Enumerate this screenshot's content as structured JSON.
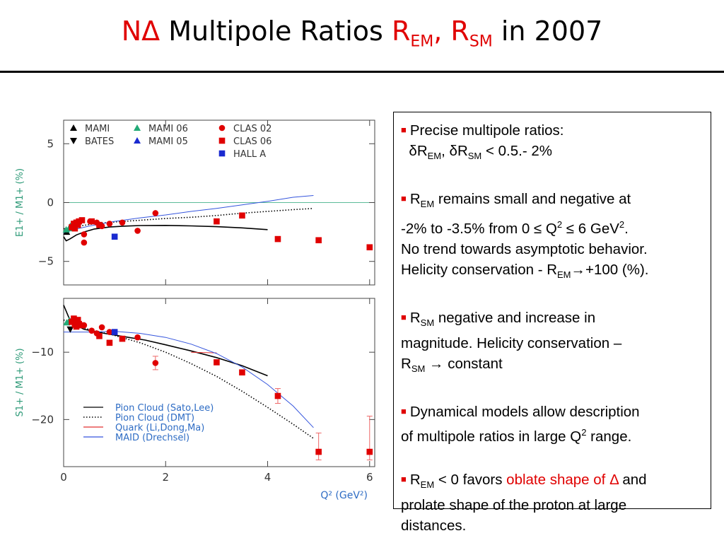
{
  "slide": {
    "title": {
      "part1": "NΔ",
      "part2": "Multipole Ratios",
      "rem_r": "R",
      "rem_sub": "EM",
      "comma": ",",
      "rsm_r": "R",
      "rsm_sub": "SM",
      "tail": "in 2007"
    },
    "notes": {
      "b1_line1": "Precise multipole ratios:",
      "b1_d1": "δR",
      "b1_s1": "EM",
      "b1_sep": ",",
      "b1_d2": "δR",
      "b1_s2": "SM",
      "b1_end": "< 0.5.- 2%",
      "b2_r": "R",
      "b2_sub": "EM",
      "b2_t1": "remains small and negative at",
      "b2_t2a": "-2% to -3.5% from 0 ≤ Q",
      "b2_sup1": "2",
      "b2_t2b": "≤ 6 GeV",
      "b2_sup2": "2",
      "b2_t2c": ".",
      "b2_t3": "No trend towards asymptotic behavior.",
      "b2_t4a": "Helicity conservation - R",
      "b2_sub2": "EM",
      "b2_t4b": "→+100 (%).",
      "b3_r": "R",
      "b3_sub": "SM",
      "b3_t1": "negative and increase in",
      "b3_t2": "magnitude. Helicity conservation –",
      "b3_r2": "R",
      "b3_sub2": "SM",
      "b3_t3": "→ constant",
      "b4_t1": "Dynamical models allow description",
      "b4_t2a": "of multipole ratios in large Q",
      "b4_sup": "2",
      "b4_t2b": "range.",
      "b5_r": "R",
      "b5_sub": "EM",
      "b5_t1": "< 0 favors",
      "b5_red": "oblate shape of Δ",
      "b5_t2": "and",
      "b5_t3": "prolate shape of the proton at large",
      "b5_t4": "distances."
    }
  },
  "chart_data": [
    {
      "type": "scatter",
      "panel": "top",
      "ylabel": "E1+ / M1+ (%)",
      "x_range": [
        0,
        6.1
      ],
      "ylim": [
        -7,
        7
      ],
      "y_ticks": [
        5,
        0,
        -5
      ],
      "y_tick_labels": [
        "5",
        "0",
        "−5"
      ],
      "zero_line": true,
      "legend": [
        {
          "label": "MAMI",
          "marker": "triangle-up",
          "color": "#000000"
        },
        {
          "label": "BATES",
          "marker": "triangle-down",
          "color": "#000000"
        },
        {
          "label": "MAMI 06",
          "marker": "triangle-up",
          "color": "#22aa77"
        },
        {
          "label": "MAMI 05",
          "marker": "triangle-up",
          "color": "#1a2ad0"
        },
        {
          "label": "CLAS 02",
          "marker": "circle",
          "color": "#e00000"
        },
        {
          "label": "CLAS 06",
          "marker": "square",
          "color": "#e00000"
        },
        {
          "label": "HALL A",
          "marker": "square",
          "color": "#1a2ad0"
        }
      ],
      "series": [
        {
          "name": "MAMI",
          "marker": "triangle-up",
          "color": "#000000",
          "points": [
            [
              0.06,
              -2.5
            ]
          ]
        },
        {
          "name": "MAMI 06",
          "marker": "triangle-up",
          "color": "#22aa77",
          "points": [
            [
              0.05,
              -2.3
            ],
            [
              0.11,
              -2.2
            ],
            [
              0.13,
              -2.0
            ]
          ]
        },
        {
          "name": "CLAS 02",
          "marker": "circle",
          "color": "#e00000",
          "points": [
            [
              0.4,
              -2.7
            ],
            [
              0.4,
              -3.4
            ],
            [
              0.52,
              -1.6
            ],
            [
              0.65,
              -1.7
            ],
            [
              0.75,
              -2.0
            ],
            [
              0.9,
              -1.8
            ],
            [
              1.15,
              -1.7
            ],
            [
              1.45,
              -2.4
            ],
            [
              1.8,
              -0.9
            ]
          ]
        },
        {
          "name": "CLAS 06",
          "marker": "square",
          "color": "#e00000",
          "points": [
            [
              0.16,
              -2.1
            ],
            [
              0.2,
              -1.8
            ],
            [
              0.22,
              -2.2
            ],
            [
              0.25,
              -1.7
            ],
            [
              0.28,
              -1.9
            ],
            [
              0.3,
              -1.6
            ],
            [
              0.36,
              -1.5
            ],
            [
              0.55,
              -1.6
            ],
            [
              0.7,
              -1.9
            ],
            [
              3.0,
              -1.6
            ],
            [
              3.5,
              -1.1
            ],
            [
              4.2,
              -3.1
            ],
            [
              5.0,
              -3.2
            ],
            [
              6.0,
              -3.8
            ]
          ]
        },
        {
          "name": "HALL A",
          "marker": "square",
          "color": "#1a2ad0",
          "points": [
            [
              1.0,
              -2.9
            ]
          ]
        }
      ],
      "curves": [
        {
          "name": "Pion Cloud (Sato,Lee)",
          "style": "solid",
          "color": "#000000",
          "points": [
            [
              0.0,
              -2.9
            ],
            [
              0.05,
              -3.25
            ],
            [
              0.12,
              -3.1
            ],
            [
              0.25,
              -2.75
            ],
            [
              0.4,
              -2.5
            ],
            [
              0.6,
              -2.25
            ],
            [
              0.9,
              -2.08
            ],
            [
              1.2,
              -2.0
            ],
            [
              1.5,
              -1.95
            ],
            [
              2.0,
              -1.94
            ],
            [
              2.5,
              -1.98
            ],
            [
              3.0,
              -2.05
            ],
            [
              3.5,
              -2.15
            ],
            [
              4.0,
              -2.3
            ]
          ]
        },
        {
          "name": "Pion Cloud (DMT)",
          "style": "dotted",
          "color": "#000000",
          "points": [
            [
              0.0,
              -2.2
            ],
            [
              0.1,
              -2.35
            ],
            [
              0.3,
              -2.0
            ],
            [
              0.6,
              -1.8
            ],
            [
              1.0,
              -1.65
            ],
            [
              1.5,
              -1.5
            ],
            [
              2.0,
              -1.35
            ],
            [
              2.5,
              -1.25
            ],
            [
              3.0,
              -1.1
            ],
            [
              3.5,
              -0.9
            ],
            [
              4.0,
              -0.75
            ],
            [
              4.5,
              -0.6
            ],
            [
              4.9,
              -0.5
            ]
          ]
        },
        {
          "name": "MAID (Drechsel)",
          "style": "solid",
          "color": "#3555dd",
          "points": [
            [
              0.0,
              -2.6
            ],
            [
              0.2,
              -2.3
            ],
            [
              0.5,
              -2.0
            ],
            [
              1.0,
              -1.6
            ],
            [
              1.5,
              -1.3
            ],
            [
              2.0,
              -1.05
            ],
            [
              2.5,
              -0.75
            ],
            [
              3.0,
              -0.5
            ],
            [
              3.5,
              -0.2
            ],
            [
              4.0,
              0.1
            ],
            [
              4.5,
              0.45
            ],
            [
              4.9,
              0.6
            ]
          ]
        }
      ]
    },
    {
      "type": "scatter",
      "panel": "bottom",
      "ylabel": "S1+ / M1+ (%)",
      "xlabel": "Q² (GeV²)",
      "x_range": [
        0,
        6.1
      ],
      "x_ticks": [
        0,
        2,
        4,
        6
      ],
      "ylim": [
        -27,
        -2
      ],
      "y_ticks": [
        -10,
        -20
      ],
      "y_tick_labels": [
        "−10",
        "−20"
      ],
      "legend": [
        {
          "label": "Pion Cloud (Sato,Lee)",
          "style": "solid",
          "color": "#000000"
        },
        {
          "label": "Pion Cloud (DMT)",
          "style": "dotted",
          "color": "#000000"
        },
        {
          "label": "Quark (Li,Dong,Ma)",
          "style": "solid",
          "color": "#e23030"
        },
        {
          "label": "MAID (Drechsel)",
          "style": "solid",
          "color": "#3555dd"
        }
      ],
      "series": [
        {
          "name": "BATES",
          "marker": "triangle-down",
          "color": "#000000",
          "points": [
            [
              0.13,
              -6.6
            ]
          ]
        },
        {
          "name": "MAMI 06",
          "marker": "triangle-up",
          "color": "#22aa77",
          "points": [
            [
              0.06,
              -5.6
            ],
            [
              0.11,
              -5.3
            ]
          ]
        },
        {
          "name": "CLAS 02",
          "marker": "circle",
          "color": "#e00000",
          "points": [
            [
              0.4,
              -6.0
            ],
            [
              0.55,
              -6.8
            ],
            [
              0.65,
              -7.2
            ],
            [
              0.75,
              -6.3
            ],
            [
              0.9,
              -7.0
            ],
            [
              1.45,
              -7.8
            ],
            [
              1.8,
              -11.6
            ]
          ]
        },
        {
          "name": "CLAS 06",
          "marker": "square",
          "color": "#e00000",
          "points": [
            [
              0.16,
              -5.5
            ],
            [
              0.2,
              -5.0
            ],
            [
              0.22,
              -5.9
            ],
            [
              0.25,
              -6.2
            ],
            [
              0.28,
              -5.2
            ],
            [
              0.3,
              -5.8
            ],
            [
              0.36,
              -6.0
            ],
            [
              0.7,
              -7.6
            ],
            [
              0.9,
              -8.6
            ],
            [
              1.15,
              -8.0
            ],
            [
              3.0,
              -11.5
            ],
            [
              3.5,
              -13.0
            ],
            [
              4.2,
              -16.5
            ],
            [
              5.0,
              -24.8
            ],
            [
              6.0,
              -24.8
            ]
          ]
        },
        {
          "name": "HALL A",
          "marker": "square",
          "color": "#1a2ad0",
          "points": [
            [
              1.0,
              -7.0
            ]
          ]
        }
      ],
      "curves": [
        {
          "name": "Pion Cloud (Sato,Lee)",
          "style": "solid",
          "color": "#000000",
          "points": [
            [
              0.0,
              -3.0
            ],
            [
              0.1,
              -4.8
            ],
            [
              0.2,
              -5.8
            ],
            [
              0.4,
              -6.6
            ],
            [
              0.8,
              -7.2
            ],
            [
              1.2,
              -7.7
            ],
            [
              1.6,
              -8.2
            ],
            [
              2.0,
              -8.9
            ],
            [
              2.5,
              -9.8
            ],
            [
              3.0,
              -10.8
            ],
            [
              3.5,
              -12.0
            ],
            [
              4.0,
              -13.5
            ]
          ]
        },
        {
          "name": "Pion Cloud (DMT)",
          "style": "dotted",
          "color": "#000000",
          "points": [
            [
              0.0,
              -5.2
            ],
            [
              0.2,
              -6.0
            ],
            [
              0.5,
              -6.6
            ],
            [
              1.0,
              -7.5
            ],
            [
              1.5,
              -8.6
            ],
            [
              2.0,
              -10.0
            ],
            [
              2.5,
              -11.7
            ],
            [
              3.0,
              -13.6
            ],
            [
              3.5,
              -15.8
            ],
            [
              4.0,
              -18.2
            ],
            [
              4.5,
              -20.7
            ],
            [
              4.9,
              -22.8
            ]
          ]
        },
        {
          "name": "Quark (Li,Dong,Ma)",
          "style": "solid",
          "color": "#e23030",
          "points": [
            [
              2.5,
              -10.0
            ],
            [
              3.0,
              -10.1
            ]
          ]
        },
        {
          "name": "MAID (Drechsel)",
          "style": "solid",
          "color": "#3555dd",
          "points": [
            [
              0.0,
              -7.0
            ],
            [
              0.5,
              -7.0
            ],
            [
              1.0,
              -6.9
            ],
            [
              1.5,
              -7.2
            ],
            [
              2.0,
              -7.8
            ],
            [
              2.5,
              -8.8
            ],
            [
              3.0,
              -10.2
            ],
            [
              3.5,
              -12.2
            ],
            [
              4.0,
              -14.8
            ],
            [
              4.5,
              -18.0
            ],
            [
              4.9,
              -21.2
            ]
          ]
        }
      ],
      "error_bars": [
        {
          "x": 4.2,
          "y_low": -17.6,
          "y_high": -15.4
        },
        {
          "x": 5.0,
          "y_low": -26.0,
          "y_high": -22.0
        },
        {
          "x": 6.0,
          "y_low": -26.0,
          "y_high": -19.5
        },
        {
          "x": 1.8,
          "y_low": -12.6,
          "y_high": -10.6
        }
      ]
    }
  ]
}
